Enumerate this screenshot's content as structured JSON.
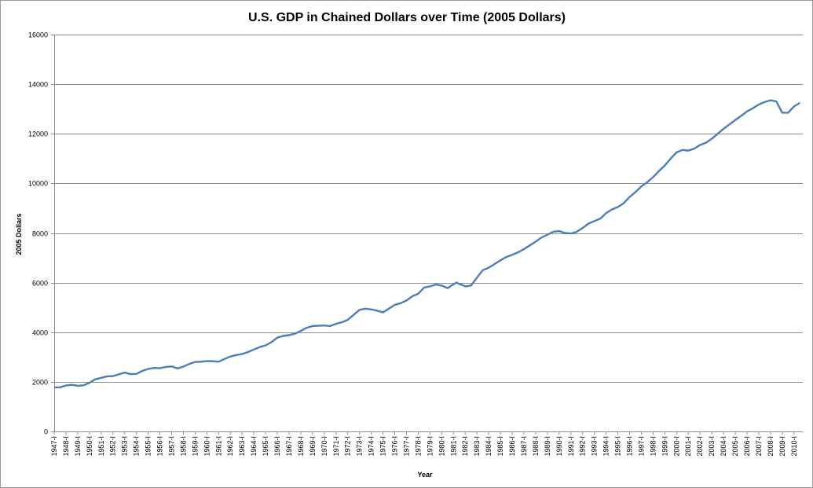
{
  "chart_data": {
    "type": "line",
    "title": "U.S. GDP in Chained Dollars over Time (2005 Dollars)",
    "xlabel": "Year",
    "ylabel": "2005 Dollars",
    "ylim": [
      0,
      16000
    ],
    "yticks": [
      0,
      2000,
      4000,
      6000,
      8000,
      10000,
      12000,
      14000,
      16000
    ],
    "grid": true,
    "legend": "none",
    "categories": [
      "1947-I",
      "1948-I",
      "1949-I",
      "1950-I",
      "1951-I",
      "1952-I",
      "1953-I",
      "1954-I",
      "1955-I",
      "1956-I",
      "1957-I",
      "1958-I",
      "1959-I",
      "1960-I",
      "1961-I",
      "1962-I",
      "1963-I",
      "1964-I",
      "1965-I",
      "1966-I",
      "1967-I",
      "1968-I",
      "1969-I",
      "1970-I",
      "1971-I",
      "1972-I",
      "1973-I",
      "1974-I",
      "1975-I",
      "1976-I",
      "1977-I",
      "1978-I",
      "1979-I",
      "1980-I",
      "1981-I",
      "1982-I",
      "1983-I",
      "1984-I",
      "1985-I",
      "1986-I",
      "1987-I",
      "1988-I",
      "1989-I",
      "1990-I",
      "1991-I",
      "1992-I",
      "1993-I",
      "1994-I",
      "1995-I",
      "1996-I",
      "1997-I",
      "1998-I",
      "1999-I",
      "2000-I",
      "2001-I",
      "2002-I",
      "2003-I",
      "2004-I",
      "2005-I",
      "2006-I",
      "2007-I",
      "2008-I",
      "2009-I",
      "2010-I"
    ],
    "series": [
      {
        "name": "GDP",
        "color": "#4a7ebb",
        "x": [
          1947.0,
          1947.5,
          1948.0,
          1948.5,
          1949.0,
          1949.5,
          1950.0,
          1950.5,
          1951.0,
          1951.5,
          1952.0,
          1952.5,
          1953.0,
          1953.5,
          1954.0,
          1954.5,
          1955.0,
          1955.5,
          1956.0,
          1956.5,
          1957.0,
          1957.5,
          1958.0,
          1958.5,
          1959.0,
          1959.5,
          1960.0,
          1960.5,
          1961.0,
          1961.5,
          1962.0,
          1962.5,
          1963.0,
          1963.5,
          1964.0,
          1964.5,
          1965.0,
          1965.5,
          1966.0,
          1966.5,
          1967.0,
          1967.5,
          1968.0,
          1968.5,
          1969.0,
          1969.5,
          1970.0,
          1970.5,
          1971.0,
          1971.5,
          1972.0,
          1972.5,
          1973.0,
          1973.5,
          1974.0,
          1974.5,
          1975.0,
          1975.5,
          1976.0,
          1976.5,
          1977.0,
          1977.5,
          1978.0,
          1978.5,
          1979.0,
          1979.5,
          1980.0,
          1980.5,
          1981.0,
          1981.25,
          1981.5,
          1982.0,
          1982.5,
          1983.0,
          1983.5,
          1984.0,
          1984.5,
          1985.0,
          1985.5,
          1986.0,
          1986.5,
          1987.0,
          1987.5,
          1988.0,
          1988.5,
          1989.0,
          1989.5,
          1990.0,
          1990.5,
          1991.0,
          1991.5,
          1992.0,
          1992.5,
          1993.0,
          1993.5,
          1994.0,
          1994.5,
          1995.0,
          1995.5,
          1996.0,
          1996.5,
          1997.0,
          1997.5,
          1998.0,
          1998.5,
          1999.0,
          1999.5,
          2000.0,
          2000.5,
          2001.0,
          2001.5,
          2002.0,
          2002.5,
          2003.0,
          2003.5,
          2004.0,
          2004.5,
          2005.0,
          2005.5,
          2006.0,
          2006.5,
          2007.0,
          2007.5,
          2008.0,
          2008.5,
          2009.0,
          2009.5,
          2010.0,
          2010.5
        ],
        "values": [
          1770,
          1780,
          1850,
          1880,
          1840,
          1860,
          1960,
          2100,
          2160,
          2220,
          2230,
          2300,
          2370,
          2310,
          2320,
          2440,
          2520,
          2560,
          2550,
          2600,
          2620,
          2540,
          2610,
          2720,
          2800,
          2810,
          2840,
          2830,
          2810,
          2920,
          3020,
          3080,
          3120,
          3200,
          3300,
          3400,
          3470,
          3600,
          3780,
          3850,
          3880,
          3940,
          4050,
          4180,
          4250,
          4260,
          4270,
          4250,
          4340,
          4400,
          4500,
          4700,
          4900,
          4950,
          4920,
          4870,
          4800,
          4950,
          5100,
          5170,
          5280,
          5450,
          5550,
          5800,
          5850,
          5920,
          5880,
          5780,
          5930,
          6000,
          5950,
          5850,
          5880,
          6200,
          6500,
          6600,
          6750,
          6900,
          7030,
          7120,
          7220,
          7350,
          7500,
          7650,
          7820,
          7930,
          8050,
          8080,
          8000,
          7980,
          8050,
          8200,
          8380,
          8480,
          8580,
          8800,
          8950,
          9050,
          9200,
          9450,
          9650,
          9880,
          10050,
          10250,
          10500,
          10720,
          11000,
          11250,
          11350,
          11320,
          11400,
          11550,
          11640,
          11800,
          12000,
          12200,
          12380,
          12550,
          12720,
          12900,
          13030,
          13180,
          13280,
          13350,
          13300,
          12850,
          12850,
          13100,
          13250
        ]
      }
    ]
  }
}
